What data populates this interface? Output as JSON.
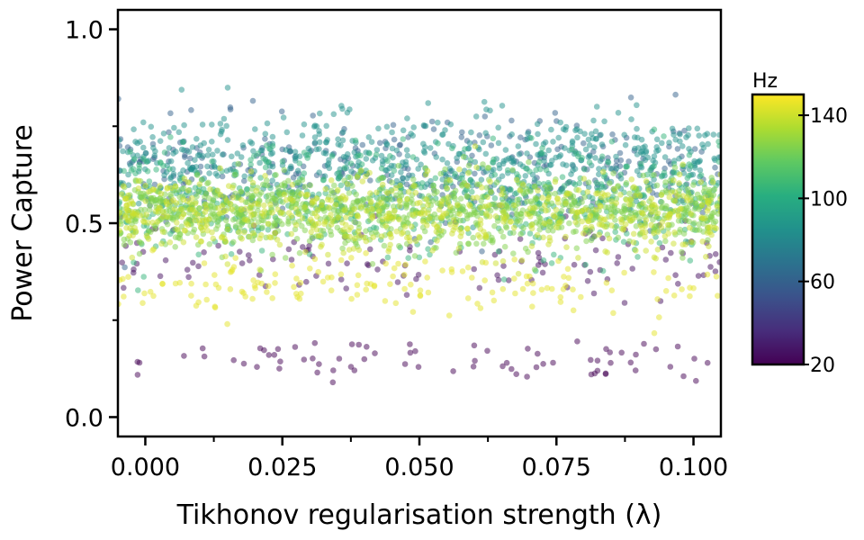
{
  "chart_data": {
    "type": "scatter",
    "title": "",
    "xlabel": "Tikhonov regularisation strength (λ)",
    "ylabel": "Power Capture",
    "xlim": [
      -0.005,
      0.105
    ],
    "ylim": [
      -0.05,
      1.05
    ],
    "xticks": [
      0.0,
      0.025,
      0.05,
      0.075,
      0.1
    ],
    "xtick_labels": [
      "0.000",
      "0.025",
      "0.050",
      "0.075",
      "0.100"
    ],
    "xminor_ticks": [
      0.0125,
      0.0375,
      0.0625,
      0.0875
    ],
    "yticks": [
      0.0,
      0.5,
      1.0
    ],
    "ytick_labels": [
      "0.0",
      "0.5",
      "1.0"
    ],
    "yminor_ticks": [
      0.25,
      0.75
    ],
    "grid": false,
    "colorbar": {
      "label": "Hz",
      "colormap": "viridis",
      "range": [
        20,
        150
      ],
      "ticks": [
        20,
        60,
        100,
        140
      ],
      "tick_labels": [
        "20",
        "60",
        "100",
        "140"
      ]
    },
    "point_groups": [
      {
        "freq_hz": 20,
        "x_range": [
          -0.002,
          0.103
        ],
        "y_mean": 0.15,
        "y_spread": 0.025,
        "count": 75
      },
      {
        "freq_hz": 25,
        "x_range": [
          -0.005,
          0.105
        ],
        "y_mean": 0.41,
        "y_spread": 0.05,
        "count": 120
      },
      {
        "freq_hz": 60,
        "x_range": [
          -0.005,
          0.105
        ],
        "y_mean": 0.63,
        "y_spread": 0.07,
        "count": 320
      },
      {
        "freq_hz": 85,
        "x_range": [
          -0.005,
          0.105
        ],
        "y_mean": 0.66,
        "y_spread": 0.06,
        "count": 600
      },
      {
        "freq_hz": 105,
        "x_range": [
          -0.005,
          0.105
        ],
        "y_mean": 0.56,
        "y_spread": 0.07,
        "count": 520
      },
      {
        "freq_hz": 125,
        "x_range": [
          -0.005,
          0.105
        ],
        "y_mean": 0.53,
        "y_spread": 0.045,
        "count": 1000
      },
      {
        "freq_hz": 140,
        "x_range": [
          -0.005,
          0.105
        ],
        "y_mean": 0.52,
        "y_spread": 0.05,
        "count": 600
      },
      {
        "freq_hz": 145,
        "x_range": [
          -0.005,
          0.105
        ],
        "y_mean": 0.34,
        "y_spread": 0.04,
        "count": 150
      }
    ]
  }
}
